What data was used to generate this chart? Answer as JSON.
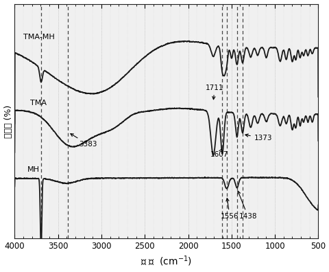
{
  "xlabel": "波 数  (cm$^{-1}$)",
  "ylabel": "透过率 (%)",
  "background_color": "#ffffff",
  "line_color": "#1a1a1a",
  "dashed_lines": [
    3696,
    3383,
    1607,
    1556,
    1438,
    1373
  ],
  "xticks": [
    4000,
    3500,
    3000,
    2500,
    2000,
    1500,
    1000,
    500
  ]
}
